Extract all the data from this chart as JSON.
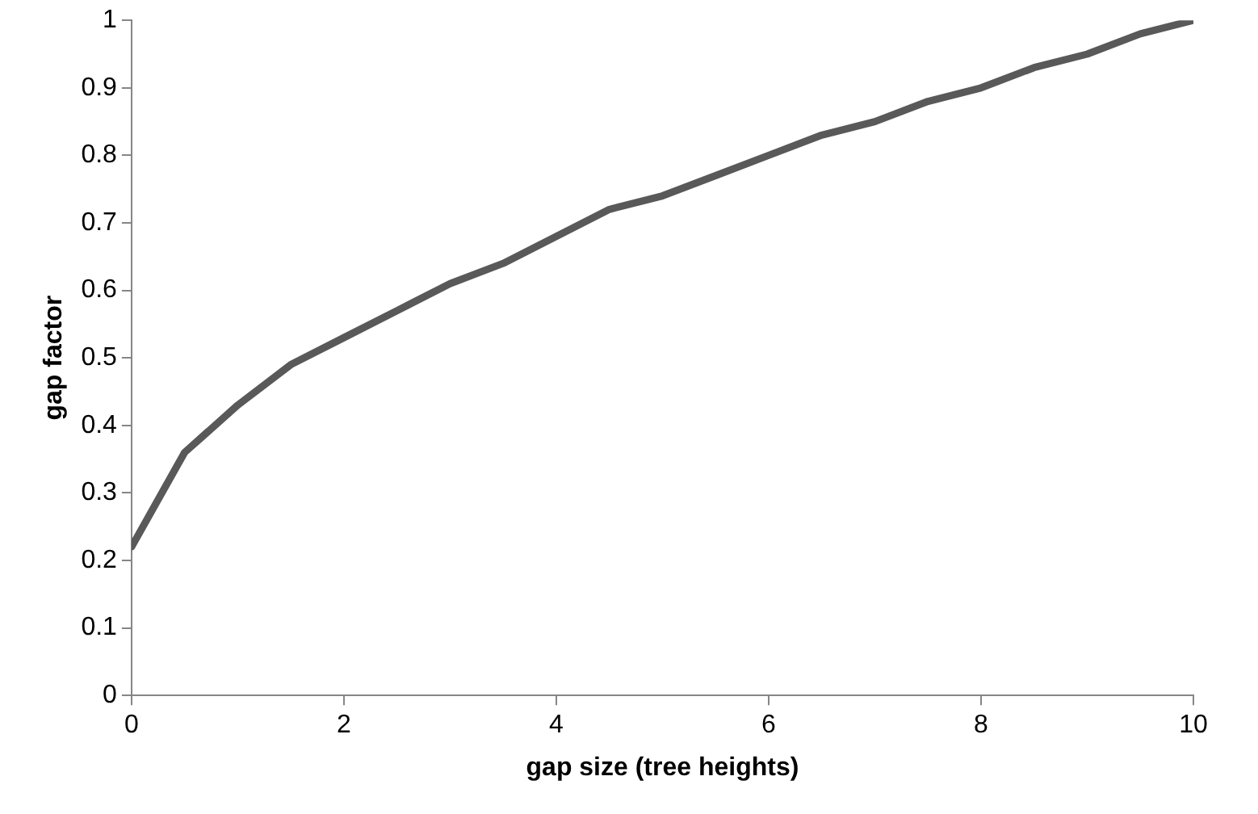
{
  "chart_data": {
    "type": "line",
    "xlabel": "gap size (tree heights)",
    "ylabel": "gap factor",
    "x": [
      0,
      0.5,
      1,
      1.5,
      2,
      2.5,
      3,
      3.5,
      4,
      4.5,
      5,
      5.5,
      6,
      6.5,
      7,
      7.5,
      8,
      8.5,
      9,
      9.5,
      10
    ],
    "series": [
      {
        "color": "#595959",
        "values": [
          0.22,
          0.36,
          0.43,
          0.49,
          0.53,
          0.57,
          0.61,
          0.64,
          0.68,
          0.72,
          0.74,
          0.77,
          0.8,
          0.83,
          0.85,
          0.88,
          0.9,
          0.93,
          0.95,
          0.98,
          1.0
        ]
      }
    ],
    "xlim": [
      0,
      10
    ],
    "xticks": [
      0,
      2,
      4,
      6,
      8,
      10
    ],
    "ylim": [
      0,
      1
    ],
    "yticks": [
      0,
      0.1,
      0.2,
      0.3,
      0.4,
      0.5,
      0.6,
      0.7,
      0.8,
      0.9,
      1
    ],
    "grid": false,
    "legend": false,
    "marker": "none",
    "line_style": "solid"
  }
}
